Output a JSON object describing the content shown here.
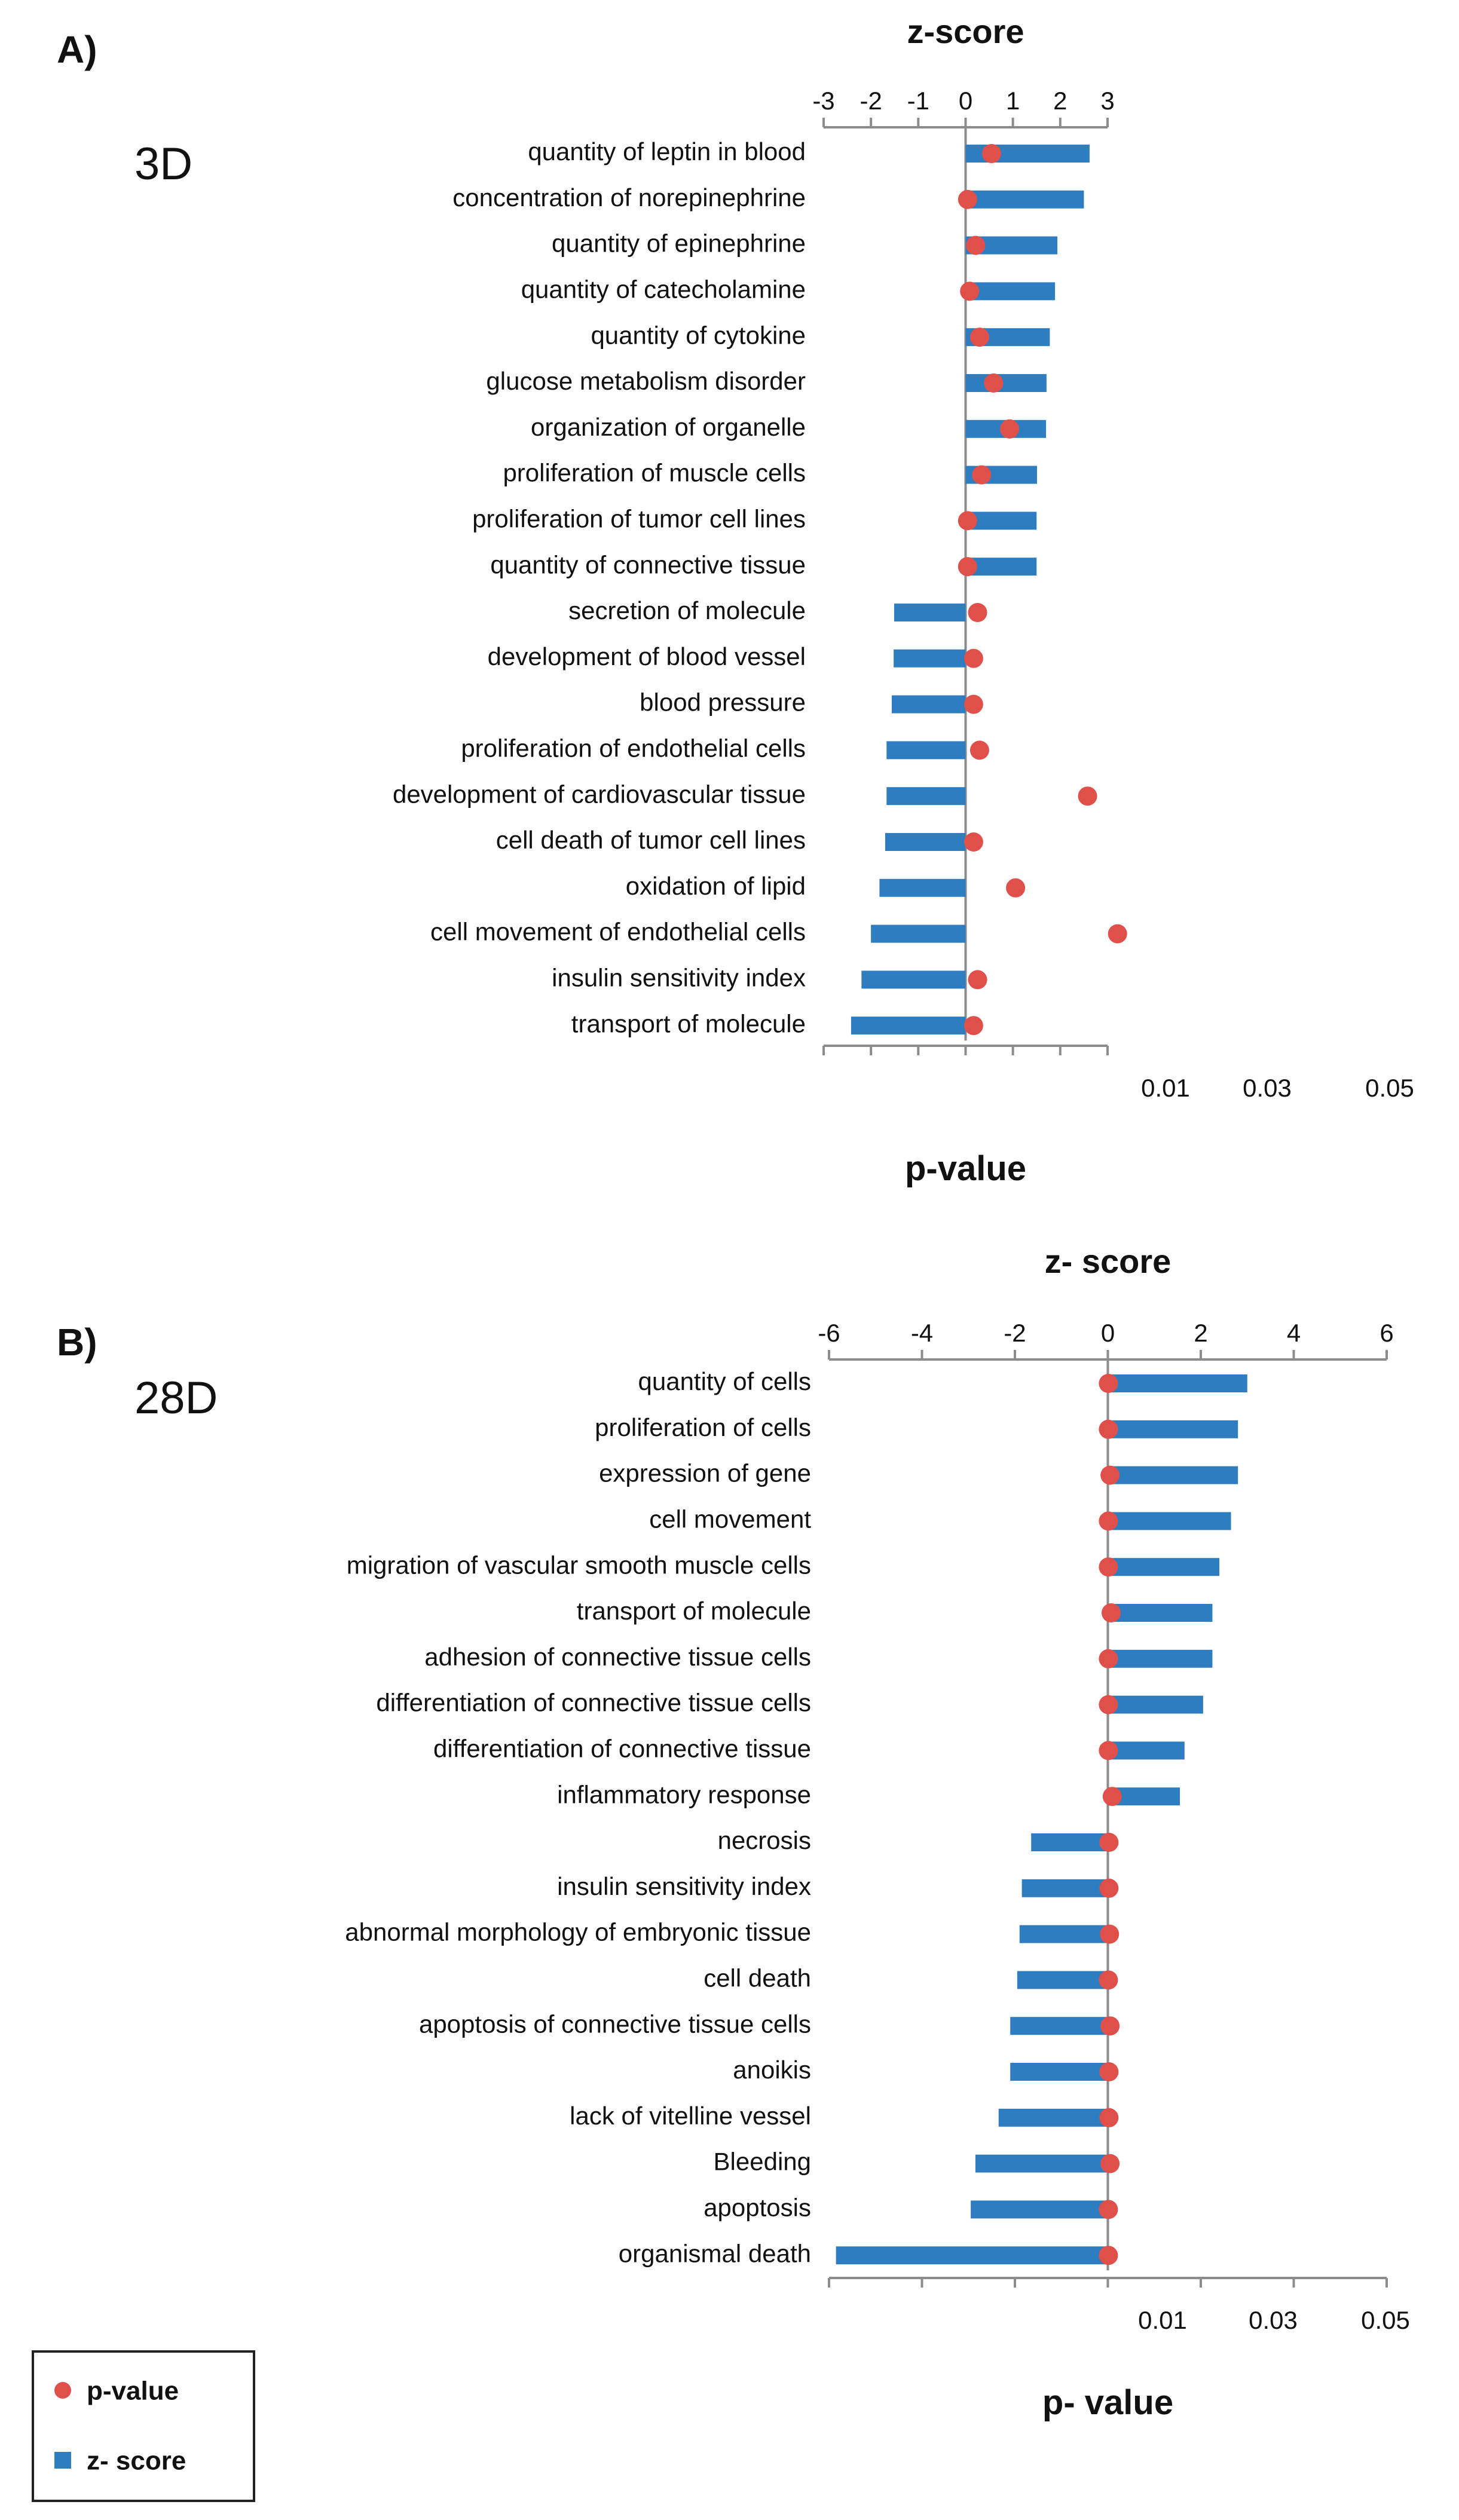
{
  "colors": {
    "bar": "#2e7dc0",
    "dot": "#e0504a",
    "axis": "#8c8c8c",
    "text": "#111111"
  },
  "chart_data": [
    {
      "type": "bar",
      "panel_label": "A)",
      "tag": "3D",
      "title": "z-score",
      "xlabel": "p-value",
      "xlim": [
        -3,
        3
      ],
      "top_ticks": [
        "-3",
        "-2",
        "-1",
        "0",
        "1",
        "2",
        "3"
      ],
      "bottom_ticks": [
        "0.01",
        "0.03",
        "0.05"
      ],
      "categories": [
        "quantity of leptin in blood",
        "concentration of norepinephrine",
        "quantity of epinephrine",
        "quantity of catecholamine",
        "quantity of cytokine",
        "glucose metabolism disorder",
        "organization of organelle",
        "proliferation of muscle cells",
        "proliferation of tumor cell lines",
        "quantity of connective tissue",
        "secretion of molecule",
        "development of blood vessel",
        "blood pressure",
        "proliferation of endothelial cells",
        "development of cardiovascular tissue",
        "cell death of tumor cell lines",
        "oxidation of lipid",
        "cell movement of endothelial cells",
        "insulin sensitivity index",
        "transport of molecule"
      ],
      "series": [
        {
          "name": "z- score",
          "values": [
            2.62,
            2.5,
            1.94,
            1.89,
            1.78,
            1.71,
            1.7,
            1.51,
            1.5,
            1.5,
            -1.51,
            -1.52,
            -1.56,
            -1.67,
            -1.67,
            -1.7,
            -1.82,
            -2.0,
            -2.2,
            -2.42
          ]
        },
        {
          "name": "p-value",
          "values": [
            0.0013,
            0.0001,
            0.0005,
            0.0002,
            0.0007,
            0.0014,
            0.0022,
            0.0008,
            0.0001,
            0.0001,
            0.0006,
            0.0004,
            0.0004,
            0.0007,
            0.0061,
            0.0004,
            0.0025,
            0.0076,
            0.0006,
            0.0004
          ]
        }
      ]
    },
    {
      "type": "bar",
      "panel_label": "B)",
      "tag": "28D",
      "title": "z- score",
      "xlabel": "p- value",
      "xlim": [
        -6,
        6
      ],
      "top_ticks": [
        "-6",
        "-4",
        "-2",
        "0",
        "2",
        "4",
        "6"
      ],
      "bottom_ticks": [
        "0.01",
        "0.03",
        "0.05"
      ],
      "categories": [
        "quantity of cells",
        "proliferation of cells",
        "expression of gene",
        "cell movement",
        "migration of vascular smooth muscle cells",
        "transport of molecule",
        "adhesion of connective tissue cells",
        "differentiation of connective tissue cells",
        "differentiation of connective tissue",
        "inflammatory response",
        "necrosis",
        "insulin sensitivity index",
        "abnormal morphology of embryonic tissue",
        "cell death",
        "apoptosis of connective tissue cells",
        "anoikis",
        "lack of vitelline vessel",
        "Bleeding",
        "apoptosis",
        "organismal death"
      ],
      "series": [
        {
          "name": "z- score",
          "values": [
            3.0,
            2.8,
            2.8,
            2.65,
            2.4,
            2.25,
            2.25,
            2.05,
            1.65,
            1.55,
            -1.65,
            -1.85,
            -1.9,
            -1.95,
            -2.1,
            -2.1,
            -2.35,
            -2.85,
            -2.95,
            -5.85
          ]
        },
        {
          "name": "p-value",
          "values": [
            0.0001,
            0.0001,
            0.0004,
            0.0001,
            0.0001,
            0.0006,
            0.0001,
            0.0001,
            0.0001,
            0.0008,
            0.0002,
            0.0002,
            0.0003,
            0.0001,
            0.0004,
            0.0002,
            0.0002,
            0.0004,
            0.0001,
            0.0001
          ]
        }
      ]
    }
  ],
  "legend": {
    "items": [
      {
        "label": "p-value",
        "marker": "circle"
      },
      {
        "label": "z- score",
        "marker": "square"
      }
    ]
  }
}
